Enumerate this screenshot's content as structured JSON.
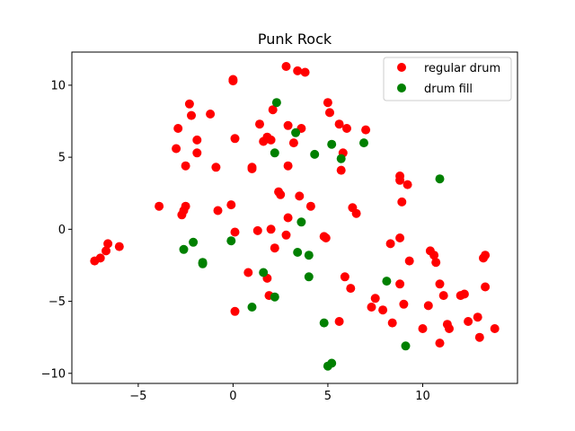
{
  "chart_data": {
    "type": "scatter",
    "title": "Punk Rock",
    "xlabel": "",
    "ylabel": "",
    "xlim": [
      -8.5,
      15
    ],
    "ylim": [
      -10.7,
      12.3
    ],
    "xticks": [
      -5,
      0,
      5,
      10
    ],
    "yticks": [
      -10,
      -5,
      0,
      5,
      10
    ],
    "x_tick_labels": [
      "−5",
      "0",
      "5",
      "10"
    ],
    "y_tick_labels": [
      "−10",
      "−5",
      "0",
      "5",
      "10"
    ],
    "grid": false,
    "legend": "top-right",
    "series": [
      {
        "name": "regular drum",
        "color": "#ff0000",
        "points": [
          [
            -2.9,
            7.0
          ],
          [
            -2.3,
            8.7
          ],
          [
            -2.2,
            7.9
          ],
          [
            -1.9,
            6.2
          ],
          [
            -1.2,
            8.0
          ],
          [
            -3.0,
            5.6
          ],
          [
            -2.5,
            4.4
          ],
          [
            -1.9,
            5.3
          ],
          [
            -0.9,
            4.3
          ],
          [
            0.0,
            10.4
          ],
          [
            0.0,
            10.3
          ],
          [
            0.1,
            6.3
          ],
          [
            1.0,
            4.3
          ],
          [
            1.0,
            4.2
          ],
          [
            1.4,
            7.3
          ],
          [
            1.8,
            6.4
          ],
          [
            2.0,
            6.2
          ],
          [
            1.6,
            6.1
          ],
          [
            2.1,
            8.3
          ],
          [
            2.8,
            11.3
          ],
          [
            3.4,
            11.0
          ],
          [
            3.8,
            10.9
          ],
          [
            2.9,
            7.2
          ],
          [
            3.2,
            6.0
          ],
          [
            3.6,
            7.0
          ],
          [
            2.9,
            4.4
          ],
          [
            5.0,
            8.8
          ],
          [
            5.1,
            8.1
          ],
          [
            5.6,
            7.3
          ],
          [
            6.0,
            7.0
          ],
          [
            7.0,
            6.9
          ],
          [
            5.8,
            5.3
          ],
          [
            5.7,
            4.1
          ],
          [
            2.4,
            2.6
          ],
          [
            2.5,
            2.4
          ],
          [
            3.5,
            2.3
          ],
          [
            4.1,
            1.6
          ],
          [
            2.9,
            0.8
          ],
          [
            -3.9,
            1.6
          ],
          [
            -2.6,
            1.3
          ],
          [
            -2.5,
            1.6
          ],
          [
            -2.7,
            1.0
          ],
          [
            -0.8,
            1.3
          ],
          [
            -0.1,
            1.7
          ],
          [
            0.1,
            -0.2
          ],
          [
            1.3,
            -0.1
          ],
          [
            2.0,
            0.0
          ],
          [
            2.8,
            -0.4
          ],
          [
            4.8,
            -0.5
          ],
          [
            4.9,
            -0.6
          ],
          [
            6.3,
            1.5
          ],
          [
            6.5,
            1.1
          ],
          [
            8.8,
            3.7
          ],
          [
            8.8,
            3.4
          ],
          [
            9.2,
            3.1
          ],
          [
            8.9,
            1.9
          ],
          [
            -7.3,
            -2.2
          ],
          [
            -7.0,
            -2.0
          ],
          [
            -6.7,
            -1.5
          ],
          [
            -6.6,
            -1.0
          ],
          [
            -6.0,
            -1.2
          ],
          [
            2.2,
            -1.3
          ],
          [
            0.8,
            -3.0
          ],
          [
            1.8,
            -3.4
          ],
          [
            1.9,
            -4.6
          ],
          [
            0.1,
            -5.7
          ],
          [
            5.9,
            -3.3
          ],
          [
            6.2,
            -4.1
          ],
          [
            5.6,
            -6.4
          ],
          [
            8.3,
            -1.0
          ],
          [
            8.8,
            -0.6
          ],
          [
            9.3,
            -2.2
          ],
          [
            7.5,
            -4.8
          ],
          [
            7.3,
            -5.4
          ],
          [
            7.9,
            -5.6
          ],
          [
            8.4,
            -6.5
          ],
          [
            8.8,
            -3.8
          ],
          [
            9.0,
            -5.2
          ],
          [
            10.4,
            -1.5
          ],
          [
            10.6,
            -1.8
          ],
          [
            10.7,
            -2.3
          ],
          [
            10.9,
            -3.8
          ],
          [
            11.1,
            -4.6
          ],
          [
            10.3,
            -5.3
          ],
          [
            10.0,
            -6.9
          ],
          [
            11.3,
            -6.6
          ],
          [
            11.4,
            -6.9
          ],
          [
            10.9,
            -7.9
          ],
          [
            12.0,
            -4.6
          ],
          [
            12.2,
            -4.5
          ],
          [
            12.4,
            -6.4
          ],
          [
            12.9,
            -6.1
          ],
          [
            13.0,
            -7.5
          ],
          [
            13.2,
            -2.0
          ],
          [
            13.3,
            -1.8
          ],
          [
            13.3,
            -4.0
          ],
          [
            13.8,
            -6.9
          ]
        ]
      },
      {
        "name": "drum fill",
        "color": "#008000",
        "points": [
          [
            2.3,
            8.8
          ],
          [
            3.3,
            6.7
          ],
          [
            5.2,
            5.9
          ],
          [
            6.9,
            6.0
          ],
          [
            5.7,
            4.9
          ],
          [
            4.3,
            5.2
          ],
          [
            2.2,
            5.3
          ],
          [
            10.9,
            3.5
          ],
          [
            3.6,
            0.5
          ],
          [
            -0.1,
            -0.8
          ],
          [
            -2.1,
            -0.9
          ],
          [
            -2.6,
            -1.4
          ],
          [
            -1.6,
            -2.3
          ],
          [
            -1.6,
            -2.4
          ],
          [
            3.4,
            -1.6
          ],
          [
            4.0,
            -1.8
          ],
          [
            1.6,
            -3.0
          ],
          [
            4.0,
            -3.3
          ],
          [
            2.2,
            -4.7
          ],
          [
            1.0,
            -5.4
          ],
          [
            8.1,
            -3.6
          ],
          [
            4.8,
            -6.5
          ],
          [
            9.1,
            -8.1
          ],
          [
            5.0,
            -9.5
          ],
          [
            5.2,
            -9.3
          ]
        ]
      }
    ]
  }
}
